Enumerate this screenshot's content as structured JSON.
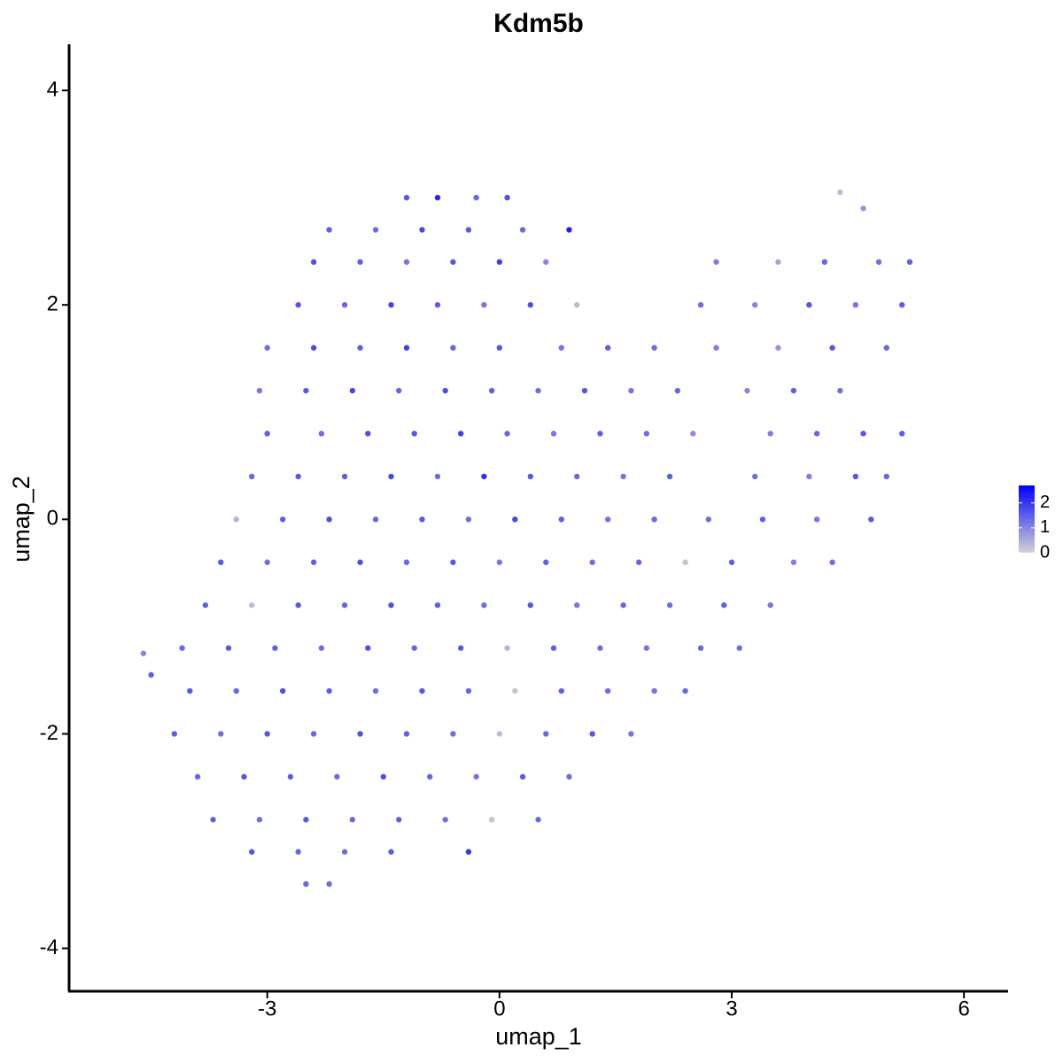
{
  "chart_data": {
    "type": "scatter",
    "title": "Kdm5b",
    "x_label": "umap_1",
    "y_label": "umap_2",
    "xlim": [
      -5.56,
      6.57
    ],
    "ylim": [
      -4.4,
      4.43
    ],
    "xticks": [
      -3,
      0,
      3,
      6
    ],
    "yticks": [
      -4,
      -2,
      0,
      2,
      4
    ],
    "color_low": "#d3d3d3",
    "color_high": "#0000ff",
    "clim": [
      0,
      2.7
    ],
    "cticks": [
      0,
      1,
      2
    ],
    "x": [
      -1.2,
      -0.8,
      -0.3,
      0.1,
      -2.2,
      -1.6,
      -1.0,
      -0.4,
      0.3,
      0.9,
      -2.4,
      -1.8,
      -1.2,
      -0.6,
      0.0,
      0.6,
      2.8,
      3.6,
      4.2,
      4.9,
      5.3,
      -2.6,
      -2.0,
      -1.4,
      -0.8,
      -0.2,
      0.4,
      1.0,
      2.6,
      3.3,
      4.0,
      4.6,
      5.2,
      -3.0,
      -2.4,
      -1.8,
      -1.2,
      -0.6,
      0.0,
      0.8,
      1.4,
      2.0,
      2.8,
      3.6,
      4.3,
      5.0,
      -3.1,
      -2.5,
      -1.9,
      -1.3,
      -0.7,
      -0.1,
      0.5,
      1.1,
      1.7,
      2.3,
      3.2,
      3.8,
      4.4,
      -3.0,
      -2.3,
      -1.7,
      -1.1,
      -0.5,
      0.1,
      0.7,
      1.3,
      1.9,
      2.5,
      3.5,
      4.1,
      4.7,
      5.2,
      -3.2,
      -2.6,
      -2.0,
      -1.4,
      -0.8,
      -0.2,
      0.4,
      1.0,
      1.6,
      2.2,
      3.3,
      4.0,
      4.6,
      5.0,
      -3.4,
      -2.8,
      -2.2,
      -1.6,
      -1.0,
      -0.4,
      0.2,
      0.8,
      1.4,
      2.0,
      2.7,
      3.4,
      4.1,
      4.8,
      -3.6,
      -3.0,
      -2.4,
      -1.8,
      -1.2,
      -0.6,
      0.0,
      0.6,
      1.2,
      1.8,
      2.4,
      3.0,
      3.8,
      4.3,
      -3.8,
      -3.2,
      -2.6,
      -2.0,
      -1.4,
      -0.8,
      -0.2,
      0.4,
      1.0,
      1.6,
      2.2,
      2.9,
      3.5,
      -4.1,
      -3.5,
      -2.9,
      -2.3,
      -1.7,
      -1.1,
      -0.5,
      0.1,
      0.7,
      1.3,
      1.9,
      2.6,
      3.1,
      -4.0,
      -3.4,
      -2.8,
      -2.2,
      -1.6,
      -1.0,
      -0.4,
      0.2,
      0.8,
      1.4,
      2.0,
      2.4,
      -4.2,
      -3.6,
      -3.0,
      -2.4,
      -1.8,
      -1.2,
      -0.6,
      0.0,
      0.6,
      1.2,
      1.7,
      -3.9,
      -3.3,
      -2.7,
      -2.1,
      -1.5,
      -0.9,
      -0.3,
      0.3,
      0.9,
      -3.7,
      -3.1,
      -2.5,
      -1.9,
      -1.3,
      -0.7,
      -0.1,
      0.5,
      -3.2,
      -2.6,
      -2.0,
      -1.4,
      -0.4,
      -2.5,
      -2.2,
      -4.6,
      -4.5,
      4.4,
      4.7
    ],
    "y": [
      3.0,
      3.0,
      3.0,
      3.0,
      2.7,
      2.7,
      2.7,
      2.7,
      2.7,
      2.7,
      2.4,
      2.4,
      2.4,
      2.4,
      2.4,
      2.4,
      2.4,
      2.4,
      2.4,
      2.4,
      2.4,
      2.0,
      2.0,
      2.0,
      2.0,
      2.0,
      2.0,
      2.0,
      2.0,
      2.0,
      2.0,
      2.0,
      2.0,
      1.6,
      1.6,
      1.6,
      1.6,
      1.6,
      1.6,
      1.6,
      1.6,
      1.6,
      1.6,
      1.6,
      1.6,
      1.6,
      1.2,
      1.2,
      1.2,
      1.2,
      1.2,
      1.2,
      1.2,
      1.2,
      1.2,
      1.2,
      1.2,
      1.2,
      1.2,
      0.8,
      0.8,
      0.8,
      0.8,
      0.8,
      0.8,
      0.8,
      0.8,
      0.8,
      0.8,
      0.8,
      0.8,
      0.8,
      0.8,
      0.4,
      0.4,
      0.4,
      0.4,
      0.4,
      0.4,
      0.4,
      0.4,
      0.4,
      0.4,
      0.4,
      0.4,
      0.4,
      0.4,
      0.0,
      0.0,
      0.0,
      0.0,
      0.0,
      0.0,
      0.0,
      0.0,
      0.0,
      0.0,
      0.0,
      0.0,
      0.0,
      0.0,
      -0.4,
      -0.4,
      -0.4,
      -0.4,
      -0.4,
      -0.4,
      -0.4,
      -0.4,
      -0.4,
      -0.4,
      -0.4,
      -0.4,
      -0.4,
      -0.4,
      -0.8,
      -0.8,
      -0.8,
      -0.8,
      -0.8,
      -0.8,
      -0.8,
      -0.8,
      -0.8,
      -0.8,
      -0.8,
      -0.8,
      -0.8,
      -1.2,
      -1.2,
      -1.2,
      -1.2,
      -1.2,
      -1.2,
      -1.2,
      -1.2,
      -1.2,
      -1.2,
      -1.2,
      -1.2,
      -1.2,
      -1.6,
      -1.6,
      -1.6,
      -1.6,
      -1.6,
      -1.6,
      -1.6,
      -1.6,
      -1.6,
      -1.6,
      -1.6,
      -1.6,
      -2.0,
      -2.0,
      -2.0,
      -2.0,
      -2.0,
      -2.0,
      -2.0,
      -2.0,
      -2.0,
      -2.0,
      -2.0,
      -2.4,
      -2.4,
      -2.4,
      -2.4,
      -2.4,
      -2.4,
      -2.4,
      -2.4,
      -2.4,
      -2.8,
      -2.8,
      -2.8,
      -2.8,
      -2.8,
      -2.8,
      -2.8,
      -2.8,
      -3.1,
      -3.1,
      -3.1,
      -3.1,
      -3.1,
      -3.4,
      -3.4,
      -1.25,
      -1.45,
      3.05,
      2.9
    ],
    "values": [
      1.6,
      2.2,
      1.4,
      1.7,
      1.5,
      1.3,
      1.8,
      1.6,
      1.4,
      2.3,
      1.7,
      1.5,
      1.2,
      1.6,
      1.9,
      1.0,
      1.1,
      0.6,
      1.4,
      1.3,
      1.5,
      1.6,
      1.4,
      1.8,
      1.5,
      1.2,
      1.7,
      0.3,
      1.3,
      1.0,
      1.6,
      1.2,
      1.5,
      1.3,
      1.7,
      1.5,
      1.9,
      1.4,
      1.6,
      1.2,
      1.5,
      1.3,
      1.1,
      0.8,
      1.6,
      1.4,
      1.2,
      1.6,
      1.8,
      1.4,
      1.7,
      1.5,
      1.3,
      1.6,
      1.2,
      1.4,
      1.0,
      1.5,
      1.3,
      1.5,
      1.3,
      1.7,
      1.6,
      1.9,
      1.4,
      1.2,
      1.5,
      1.3,
      0.9,
      1.1,
      1.4,
      1.6,
      1.5,
      1.4,
      1.6,
      1.5,
      1.8,
      1.3,
      2.1,
      1.6,
      1.4,
      1.2,
      1.5,
      1.3,
      1.1,
      1.6,
      1.4,
      0.4,
      1.5,
      1.7,
      1.4,
      1.6,
      1.3,
      1.8,
      1.5,
      1.2,
      1.4,
      1.3,
      1.5,
      1.2,
      1.6,
      1.6,
      1.3,
      1.5,
      1.7,
      1.4,
      1.6,
      1.2,
      1.5,
      1.3,
      1.4,
      0.2,
      1.5,
      1.1,
      1.3,
      1.5,
      0.3,
      1.6,
      1.4,
      1.7,
      1.5,
      1.3,
      1.6,
      1.2,
      1.4,
      1.3,
      1.5,
      1.2,
      1.4,
      1.6,
      1.5,
      1.3,
      1.7,
      1.4,
      1.6,
      0.4,
      1.5,
      1.3,
      1.2,
      1.4,
      1.3,
      1.6,
      1.4,
      1.7,
      1.5,
      1.3,
      1.6,
      1.4,
      0.2,
      1.5,
      1.3,
      1.2,
      1.4,
      1.5,
      1.3,
      1.6,
      1.4,
      1.7,
      1.5,
      1.3,
      0.3,
      1.4,
      1.6,
      1.2,
      1.4,
      1.6,
      1.5,
      1.3,
      1.7,
      1.4,
      1.2,
      1.5,
      1.3,
      1.5,
      1.3,
      1.6,
      1.4,
      1.5,
      1.3,
      0.2,
      1.4,
      1.6,
      1.4,
      1.3,
      1.5,
      2.0,
      1.4,
      1.3,
      1.0,
      1.5,
      0.3,
      0.8
    ]
  }
}
